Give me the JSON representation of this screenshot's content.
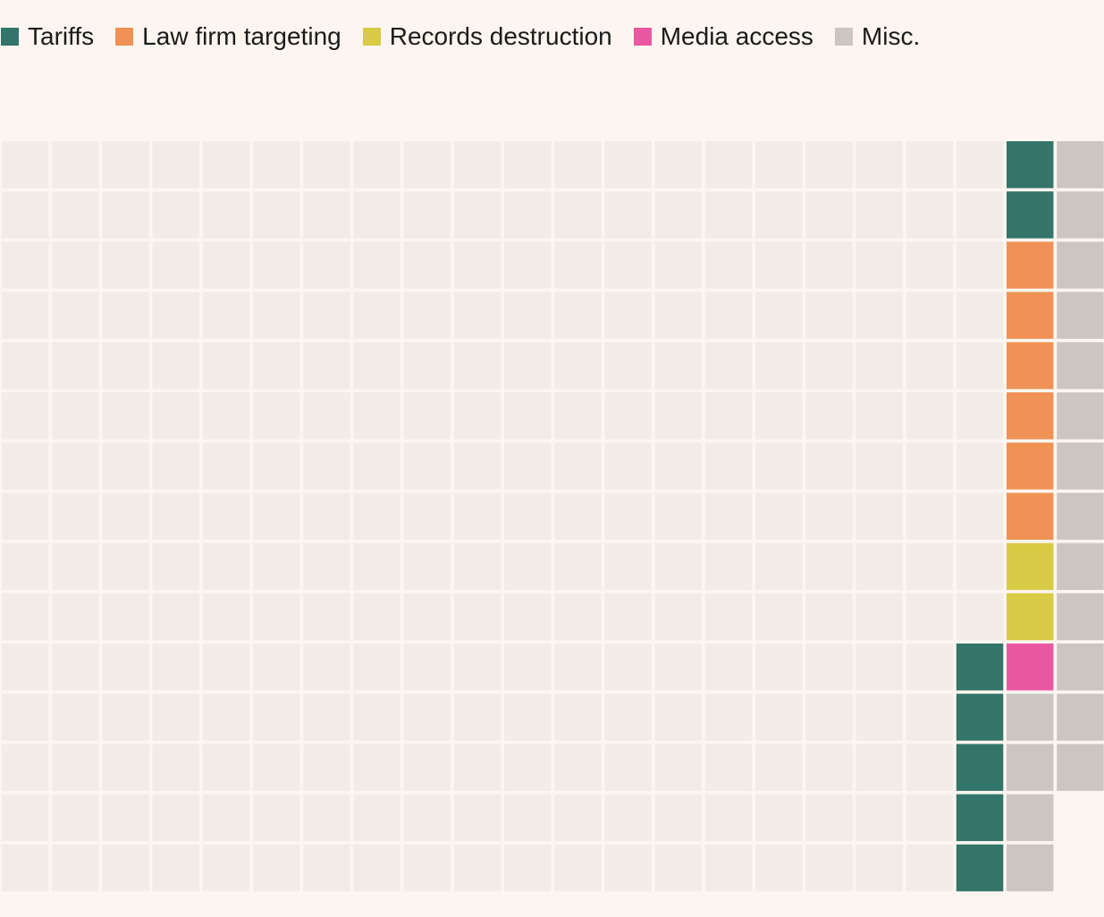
{
  "legend": [
    {
      "label": "Tariffs",
      "color": "#33756a"
    },
    {
      "label": "Law firm targeting",
      "color": "#f09255"
    },
    {
      "label": "Records destruction",
      "color": "#d8cb45"
    },
    {
      "label": "Media access",
      "color": "#eb58a2"
    },
    {
      "label": "Misc.",
      "color": "#cbc6c0"
    }
  ],
  "chart_data": {
    "type": "waffle",
    "rows": 15,
    "columns": 22,
    "empty_color": "#f3ece6",
    "series": [
      {
        "name": "Tariffs",
        "value": 7,
        "color": "#33756a"
      },
      {
        "name": "Law firm targeting",
        "value": 6,
        "color": "#f09255"
      },
      {
        "name": "Records destruction",
        "value": 2,
        "color": "#d8cb45"
      },
      {
        "name": "Media access",
        "value": 1,
        "color": "#eb58a2"
      },
      {
        "name": "Misc.",
        "value": 17,
        "color": "#cbc6c0"
      }
    ],
    "filled_cells": {
      "column_20": [
        "Tariffs",
        "Tariffs",
        "Law firm targeting",
        "Law firm targeting",
        "Law firm targeting",
        "Law firm targeting",
        "Law firm targeting",
        "Law firm targeting",
        "Records destruction",
        "Records destruction",
        "Media access",
        "Misc.",
        "Misc.",
        "Misc.",
        "Misc."
      ],
      "column_21": [
        "Misc.",
        "Misc.",
        "Misc.",
        "Misc.",
        "Misc.",
        "Misc.",
        "Misc.",
        "Misc.",
        "Misc.",
        "Misc.",
        "Misc.",
        "Misc.",
        "Misc.",
        null,
        null
      ],
      "column_19": [
        null,
        null,
        null,
        null,
        null,
        null,
        null,
        null,
        null,
        null,
        "Tariffs",
        "Tariffs",
        "Tariffs",
        "Tariffs",
        "Tariffs"
      ]
    }
  }
}
